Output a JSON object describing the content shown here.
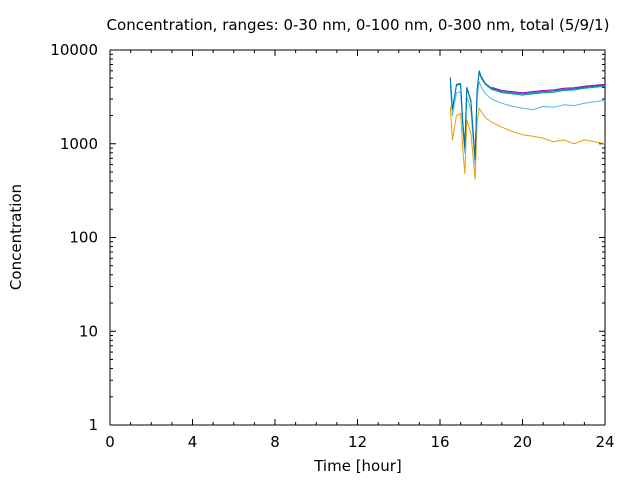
{
  "chart_data": {
    "type": "line",
    "title": "Concentration, ranges: 0-30 nm, 0-100 nm, 0-300 nm, total (5/9/1)",
    "xlabel": "Time [hour]",
    "ylabel": "Concentration",
    "xlim": [
      0,
      24
    ],
    "ylim": [
      1,
      10000
    ],
    "yscale": "log",
    "grid": false,
    "legend": "none",
    "x_ticks": [
      0,
      4,
      8,
      12,
      16,
      20,
      24
    ],
    "x_tick_labels": [
      "0",
      "4",
      "8",
      "12",
      "16",
      "20",
      "24"
    ],
    "y_ticks": [
      1,
      10,
      100,
      1000,
      10000
    ],
    "y_tick_labels": [
      "1",
      "10",
      "100",
      "1000",
      "10000"
    ],
    "series": [
      {
        "color": "#e69f00",
        "x": [
          16.5,
          16.6,
          16.8,
          17.0,
          17.1,
          17.2,
          17.3,
          17.5,
          17.7,
          17.8,
          17.9,
          18.0,
          18.2,
          18.5,
          19.0,
          19.5,
          20.0,
          20.5,
          21.0,
          21.5,
          22.0,
          22.5,
          23.0,
          23.5,
          24.0
        ],
        "y": [
          2500,
          1100,
          2000,
          2100,
          900,
          480,
          1800,
          1300,
          420,
          1700,
          2400,
          2200,
          1900,
          1700,
          1500,
          1350,
          1250,
          1200,
          1150,
          1050,
          1100,
          1000,
          1100,
          1050,
          1000
        ]
      },
      {
        "color": "#56b4e9",
        "x": [
          16.5,
          16.6,
          16.8,
          17.0,
          17.1,
          17.2,
          17.3,
          17.5,
          17.7,
          17.8,
          17.9,
          18.0,
          18.2,
          18.5,
          19.0,
          19.5,
          20.0,
          20.5,
          21.0,
          21.5,
          22.0,
          22.5,
          23.0,
          23.5,
          24.0
        ],
        "y": [
          4200,
          2000,
          3500,
          3600,
          1500,
          800,
          3200,
          2300,
          600,
          3000,
          4600,
          4000,
          3400,
          3000,
          2700,
          2500,
          2400,
          2300,
          2500,
          2450,
          2600,
          2550,
          2700,
          2800,
          2900
        ]
      },
      {
        "color": "#009e73",
        "x": [
          16.5,
          16.6,
          16.8,
          17.0,
          17.1,
          17.2,
          17.3,
          17.5,
          17.7,
          17.8,
          17.9,
          18.0,
          18.2,
          18.5,
          19.0,
          19.5,
          20.0,
          20.5,
          21.0,
          21.5,
          22.0,
          22.5,
          23.0,
          23.5,
          24.0
        ],
        "y": [
          5000,
          2300,
          4200,
          4300,
          1700,
          900,
          3900,
          2800,
          680,
          3700,
          5800,
          5000,
          4300,
          3800,
          3500,
          3400,
          3300,
          3400,
          3500,
          3550,
          3700,
          3750,
          3900,
          4000,
          4100
        ]
      },
      {
        "color": "#0072b2",
        "x": [
          16.5,
          16.6,
          16.8,
          17.0,
          17.1,
          17.2,
          17.3,
          17.5,
          17.7,
          17.8,
          17.9,
          18.0,
          18.2,
          18.5,
          19.0,
          19.5,
          20.0,
          20.5,
          21.0,
          21.5,
          22.0,
          22.5,
          23.0,
          23.5,
          24.0
        ],
        "y": [
          5100,
          2350,
          4300,
          4400,
          1750,
          920,
          4000,
          2900,
          700,
          3800,
          6000,
          5200,
          4400,
          3900,
          3600,
          3500,
          3400,
          3500,
          3600,
          3650,
          3800,
          3850,
          4000,
          4100,
          4200
        ]
      },
      {
        "color": "#9400d3",
        "x": [
          18.5,
          19.0,
          19.5,
          20.0,
          20.5,
          21.0,
          21.5,
          22.0,
          22.5,
          23.0,
          23.5,
          24.0
        ],
        "y": [
          4000,
          3700,
          3600,
          3500,
          3600,
          3700,
          3750,
          3900,
          3950,
          4100,
          4200,
          4300
        ]
      }
    ]
  }
}
